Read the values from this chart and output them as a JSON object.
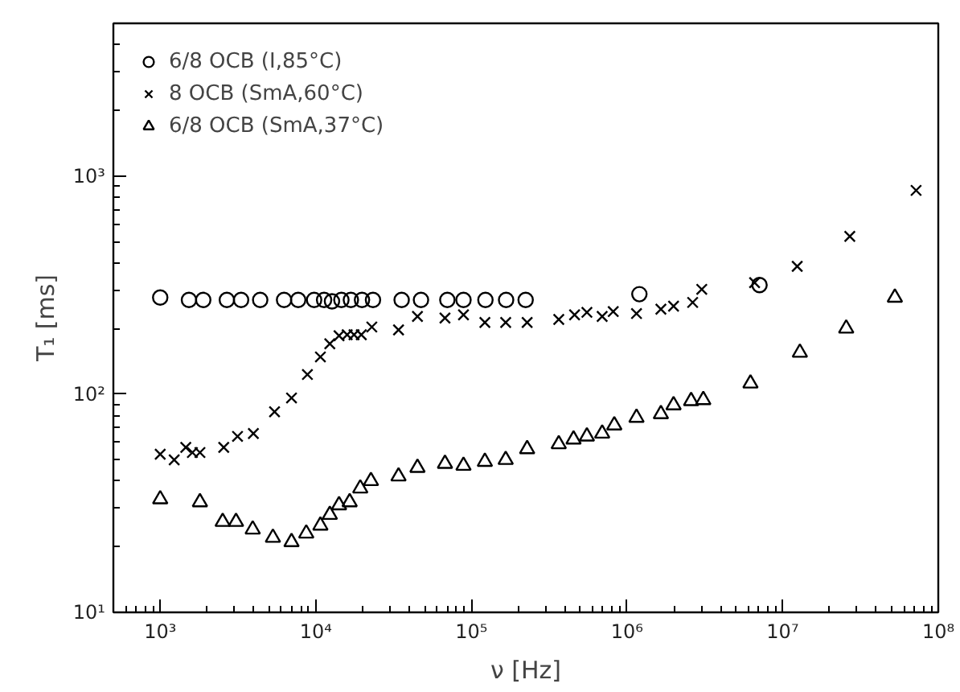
{
  "chart_data": {
    "type": "scatter",
    "xlabel": "ν [Hz]",
    "ylabel": "T₁ [ms]",
    "log": "xy",
    "grid": false,
    "legend": "top left",
    "xlim": [
      500,
      100000000
    ],
    "ylim": [
      10,
      5000
    ],
    "xticks": [
      {
        "value": 1000,
        "label": "10³"
      },
      {
        "value": 10000,
        "label": "10⁴"
      },
      {
        "value": 100000,
        "label": "10⁵"
      },
      {
        "value": 1000000,
        "label": "10⁶"
      },
      {
        "value": 10000000,
        "label": "10⁷"
      },
      {
        "value": 100000000,
        "label": "10⁸"
      }
    ],
    "yticks": [
      {
        "value": 10,
        "label": "10¹"
      },
      {
        "value": 100,
        "label": "10²"
      },
      {
        "value": 1000,
        "label": "10³"
      }
    ],
    "series": [
      {
        "name": "6/8 OCB (I,85°C)",
        "color": "#000000",
        "marker": "circle",
        "x": [
          1000,
          1530,
          1890,
          2680,
          3310,
          4390,
          6250,
          7700,
          9750,
          11300,
          12700,
          14600,
          16800,
          19800,
          23300,
          35600,
          47400,
          70000,
          88900,
          123000,
          167000,
          223000,
          1200000,
          7100000
        ],
        "values": [
          277,
          270,
          270,
          270,
          270,
          270,
          270,
          270,
          270,
          270,
          266,
          270,
          270,
          270,
          270,
          270,
          270,
          270,
          270,
          270,
          270,
          270,
          287,
          316
        ]
      },
      {
        "name": "8 OCB (SmA,60°C)",
        "color": "#000000",
        "marker": "cross",
        "x": [
          1000,
          1230,
          1460,
          1610,
          1800,
          2560,
          3140,
          3970,
          5430,
          6980,
          8830,
          10700,
          12300,
          14100,
          15900,
          17600,
          19600,
          22900,
          34000,
          45000,
          67600,
          88900,
          122000,
          166000,
          228000,
          364000,
          460000,
          552000,
          692000,
          815000,
          1150000,
          1650000,
          1990000,
          2640000,
          3020000,
          6600000,
          12400000,
          27000000,
          72000000
        ],
        "values": [
          53,
          50,
          57,
          54,
          54,
          57,
          64,
          66,
          83,
          96,
          123,
          148,
          170,
          185,
          187,
          187,
          187,
          203,
          197,
          227,
          223,
          231,
          213,
          213,
          213,
          220,
          231,
          237,
          227,
          239,
          234,
          245,
          253,
          263,
          302,
          324,
          385,
          528,
          858
        ]
      },
      {
        "name": "6/8 OCB (SmA,37°C)",
        "color": "#000000",
        "marker": "triangle",
        "x": [
          1000,
          1800,
          2520,
          3070,
          3930,
          5300,
          6980,
          8680,
          10700,
          12300,
          14100,
          16500,
          19300,
          22600,
          34000,
          45000,
          67600,
          88900,
          122000,
          166000,
          228000,
          364000,
          453000,
          552000,
          692000,
          828000,
          1150000,
          1650000,
          1990000,
          2580000,
          3090000,
          6210000,
          12900000,
          25600000,
          52600000
        ],
        "values": [
          33,
          32,
          26,
          26,
          24,
          22,
          21,
          23,
          25,
          28,
          31,
          32,
          37,
          40,
          42,
          46,
          48,
          47,
          49,
          50,
          56,
          59,
          62,
          64,
          66,
          72,
          78,
          81,
          89,
          93,
          94,
          112,
          155,
          200,
          277
        ]
      }
    ]
  }
}
